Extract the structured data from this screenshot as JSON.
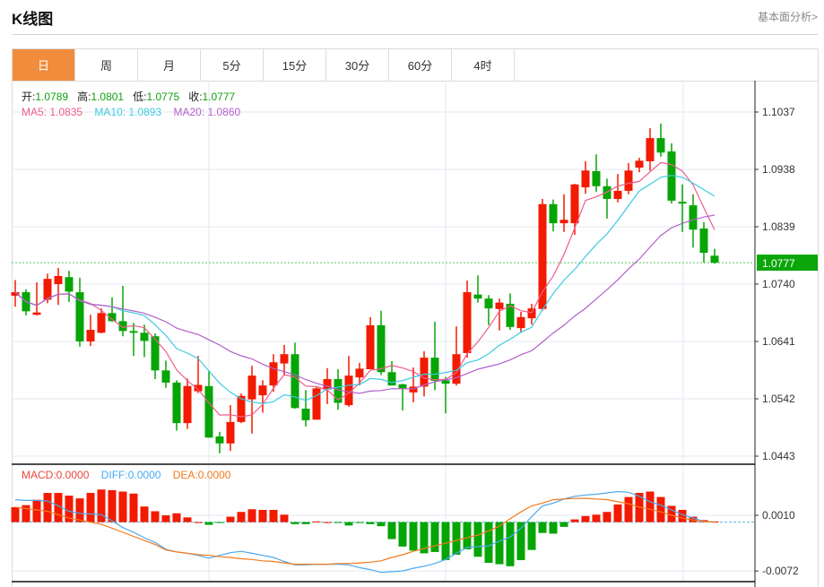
{
  "header": {
    "title": "K线图",
    "link": "基本面分析>"
  },
  "tabs": [
    {
      "label": "日",
      "active": true
    },
    {
      "label": "周"
    },
    {
      "label": "月"
    },
    {
      "label": "5分"
    },
    {
      "label": "15分"
    },
    {
      "label": "30分"
    },
    {
      "label": "60分"
    },
    {
      "label": "4时"
    }
  ],
  "legend": {
    "open_label": "开:",
    "open": "1.0789",
    "high_label": "高:",
    "high": "1.0801",
    "low_label": "低:",
    "low": "1.0775",
    "close_label": "收:",
    "close": "1.0777",
    "ma5": "MA5: 1.0835",
    "ma10": "MA10: 1.0893",
    "ma20": "MA20: 1.0860",
    "macd": "MACD:0.0000",
    "diff": "DIFF:0.0000",
    "dea": "DEA:0.0000"
  },
  "colors": {
    "up": "#F21A00",
    "down": "#06A506",
    "ma5": "#EE5C8C",
    "ma10": "#3DCAE2",
    "ma20": "#B35ECB",
    "diff": "#4AA8F0",
    "dea": "#F27A1E",
    "macd_label": "#E8463A",
    "price_tag": "#0AA60A",
    "accent": "#F08C3C"
  },
  "chart_data": {
    "type": "candlestick",
    "price_axis": {
      "ticks": [
        "1.1037",
        "1.0938",
        "1.0839",
        "1.0740",
        "1.0641",
        "1.0542",
        "1.0443"
      ],
      "range": [
        1.0443,
        1.1037
      ]
    },
    "current_price": "1.0777",
    "candles": [
      [
        1.072,
        1.0747,
        1.0701,
        1.0726
      ],
      [
        1.0726,
        1.0731,
        1.0686,
        1.0693
      ],
      [
        1.0687,
        1.0743,
        1.0686,
        1.0691
      ],
      [
        1.0713,
        1.0758,
        1.0707,
        1.0749
      ],
      [
        1.074,
        1.0768,
        1.0704,
        1.0754
      ],
      [
        1.0752,
        1.0763,
        1.0709,
        1.0727
      ],
      [
        1.0726,
        1.0751,
        1.0632,
        1.0641
      ],
      [
        1.0641,
        1.0687,
        1.0633,
        1.0661
      ],
      [
        1.0656,
        1.0698,
        1.0655,
        1.069
      ],
      [
        1.069,
        1.0717,
        1.0675,
        1.0676
      ],
      [
        1.0676,
        1.0737,
        1.065,
        1.0659
      ],
      [
        1.0659,
        1.0673,
        1.0616,
        1.0656
      ],
      [
        1.0656,
        1.067,
        1.0614,
        1.0642
      ],
      [
        1.065,
        1.0655,
        1.0576,
        1.0591
      ],
      [
        1.0591,
        1.0608,
        1.0561,
        1.057
      ],
      [
        1.057,
        1.0574,
        1.0487,
        1.05
      ],
      [
        1.05,
        1.0577,
        1.049,
        1.0564
      ],
      [
        1.0555,
        1.0616,
        1.0552,
        1.0566
      ],
      [
        1.0564,
        1.0591,
        1.0475,
        1.0475
      ],
      [
        1.0477,
        1.0485,
        1.0448,
        1.0465
      ],
      [
        1.0465,
        1.0531,
        1.0452,
        1.0502
      ],
      [
        1.0502,
        1.0551,
        1.05,
        1.0547
      ],
      [
        1.0541,
        1.0599,
        1.0482,
        1.0582
      ],
      [
        1.0548,
        1.0574,
        1.0518,
        1.0565
      ],
      [
        1.0565,
        1.0619,
        1.0554,
        1.0605
      ],
      [
        1.0603,
        1.0635,
        1.0582,
        1.0619
      ],
      [
        1.0619,
        1.0639,
        1.0525,
        1.0526
      ],
      [
        1.0525,
        1.0557,
        1.0494,
        1.0505
      ],
      [
        1.0506,
        1.0562,
        1.0506,
        1.056
      ],
      [
        1.0558,
        1.0595,
        1.0533,
        1.0576
      ],
      [
        1.0576,
        1.0593,
        1.0523,
        1.0535
      ],
      [
        1.0531,
        1.0616,
        1.0528,
        1.0582
      ],
      [
        1.0579,
        1.0604,
        1.0565,
        1.0594
      ],
      [
        1.0593,
        1.0683,
        1.0593,
        1.0669
      ],
      [
        1.0669,
        1.0694,
        1.0583,
        1.0588
      ],
      [
        1.0588,
        1.0607,
        1.0565,
        1.0565
      ],
      [
        1.0567,
        1.0568,
        1.0522,
        1.056
      ],
      [
        1.0553,
        1.0596,
        1.0536,
        1.0563
      ],
      [
        1.0563,
        1.0624,
        1.0546,
        1.0613
      ],
      [
        1.0613,
        1.0675,
        1.0557,
        1.0573
      ],
      [
        1.0574,
        1.058,
        1.0517,
        1.0568
      ],
      [
        1.0568,
        1.0667,
        1.0565,
        1.0619
      ],
      [
        1.0621,
        1.0746,
        1.0613,
        1.0726
      ],
      [
        1.0722,
        1.0755,
        1.0708,
        1.0715
      ],
      [
        1.0715,
        1.0721,
        1.0669,
        1.0698
      ],
      [
        1.0697,
        1.0715,
        1.066,
        1.0708
      ],
      [
        1.0706,
        1.0724,
        1.0661,
        1.0666
      ],
      [
        1.0664,
        1.0692,
        1.0656,
        1.0683
      ],
      [
        1.0681,
        1.0706,
        1.067,
        1.0698
      ],
      [
        1.0697,
        1.0887,
        1.0694,
        1.0878
      ],
      [
        1.0878,
        1.0886,
        1.0831,
        1.0845
      ],
      [
        1.0845,
        1.0895,
        1.083,
        1.0851
      ],
      [
        1.0845,
        1.0913,
        1.0825,
        1.0912
      ],
      [
        1.0907,
        1.0952,
        1.0896,
        1.0936
      ],
      [
        1.0935,
        1.0964,
        1.0899,
        1.0909
      ],
      [
        1.0909,
        1.0922,
        1.0853,
        1.0887
      ],
      [
        1.0887,
        1.093,
        1.0881,
        1.0901
      ],
      [
        1.0901,
        1.0949,
        1.0895,
        1.0936
      ],
      [
        1.0941,
        1.0958,
        1.0933,
        1.0953
      ],
      [
        1.0952,
        1.1009,
        1.0936,
        1.0992
      ],
      [
        1.0992,
        1.1017,
        1.096,
        1.0967
      ],
      [
        1.0969,
        1.0983,
        1.0879,
        1.0884
      ],
      [
        1.0882,
        1.0912,
        1.083,
        1.0879
      ],
      [
        1.0876,
        1.0895,
        1.0803,
        1.0834
      ],
      [
        1.0836,
        1.0847,
        1.0777,
        1.0794
      ],
      [
        1.0789,
        1.0801,
        1.0775,
        1.0777
      ]
    ],
    "ma_periods": [
      5,
      10,
      20
    ],
    "macd": {
      "ticks": [
        "0.0010",
        "-0.0072"
      ],
      "hist": [
        0.0022,
        0.0025,
        0.0033,
        0.0043,
        0.0043,
        0.0039,
        0.0035,
        0.0043,
        0.0048,
        0.0047,
        0.0045,
        0.0042,
        0.0023,
        0.0016,
        0.001,
        0.0013,
        0.0007,
        0.0,
        -0.0004,
        -0.0001,
        0.0008,
        0.0015,
        0.0019,
        0.0018,
        0.0018,
        0.0011,
        -0.0003,
        -0.0003,
        0.0001,
        0.0,
        -0.0001,
        -0.0005,
        -0.0001,
        -0.0003,
        -0.0006,
        -0.0025,
        -0.0036,
        -0.0042,
        -0.0046,
        -0.0044,
        -0.0056,
        -0.0048,
        -0.004,
        -0.0051,
        -0.006,
        -0.0062,
        -0.0065,
        -0.0056,
        -0.0041,
        -0.0016,
        -0.0017,
        -0.0007,
        0.0004,
        0.0009,
        0.0011,
        0.0015,
        0.0026,
        0.0037,
        0.0043,
        0.0045,
        0.0037,
        0.0024,
        0.0018,
        0.0008,
        0.0003,
        0.0001
      ],
      "diff": [
        0.0033,
        0.0032,
        0.0032,
        0.0031,
        0.0024,
        0.0016,
        0.0013,
        0.0012,
        0.0011,
        0.0002,
        -0.0008,
        -0.0015,
        -0.0023,
        -0.003,
        -0.004,
        -0.0044,
        -0.0046,
        -0.0049,
        -0.0053,
        -0.0049,
        -0.0045,
        -0.0043,
        -0.0046,
        -0.0049,
        -0.0052,
        -0.0058,
        -0.0063,
        -0.0063,
        -0.0062,
        -0.0062,
        -0.0062,
        -0.0063,
        -0.0067,
        -0.007,
        -0.0074,
        -0.0073,
        -0.0072,
        -0.0068,
        -0.0065,
        -0.0061,
        -0.0055,
        -0.0046,
        -0.0037,
        -0.0036,
        -0.0035,
        -0.0028,
        -0.0022,
        -0.0009,
        0.0008,
        0.0024,
        0.0028,
        0.0034,
        0.0038,
        0.004,
        0.0041,
        0.0043,
        0.0045,
        0.0044,
        0.0038,
        0.003,
        0.0025,
        0.0018,
        0.0011,
        0.0006,
        0.0001,
        0.0
      ],
      "dea": [
        0.0022,
        0.002,
        0.0018,
        0.0016,
        0.0011,
        0.0006,
        0.0003,
        0.0,
        -0.0003,
        -0.0009,
        -0.0015,
        -0.0021,
        -0.0027,
        -0.0033,
        -0.0041,
        -0.0044,
        -0.0046,
        -0.0048,
        -0.0049,
        -0.0051,
        -0.0052,
        -0.0054,
        -0.0055,
        -0.0057,
        -0.0058,
        -0.006,
        -0.0062,
        -0.0062,
        -0.0062,
        -0.0062,
        -0.0061,
        -0.0061,
        -0.006,
        -0.0059,
        -0.0057,
        -0.0052,
        -0.0048,
        -0.0043,
        -0.0039,
        -0.0035,
        -0.0031,
        -0.0027,
        -0.0023,
        -0.0019,
        -0.0013,
        -0.0006,
        0.0005,
        0.0015,
        0.0024,
        0.0028,
        0.0033,
        0.0034,
        0.0035,
        0.0035,
        0.0034,
        0.0033,
        0.003,
        0.0027,
        0.0022,
        0.0019,
        0.0015,
        0.001,
        0.0006,
        0.0003,
        0.0001,
        0.0
      ]
    }
  }
}
